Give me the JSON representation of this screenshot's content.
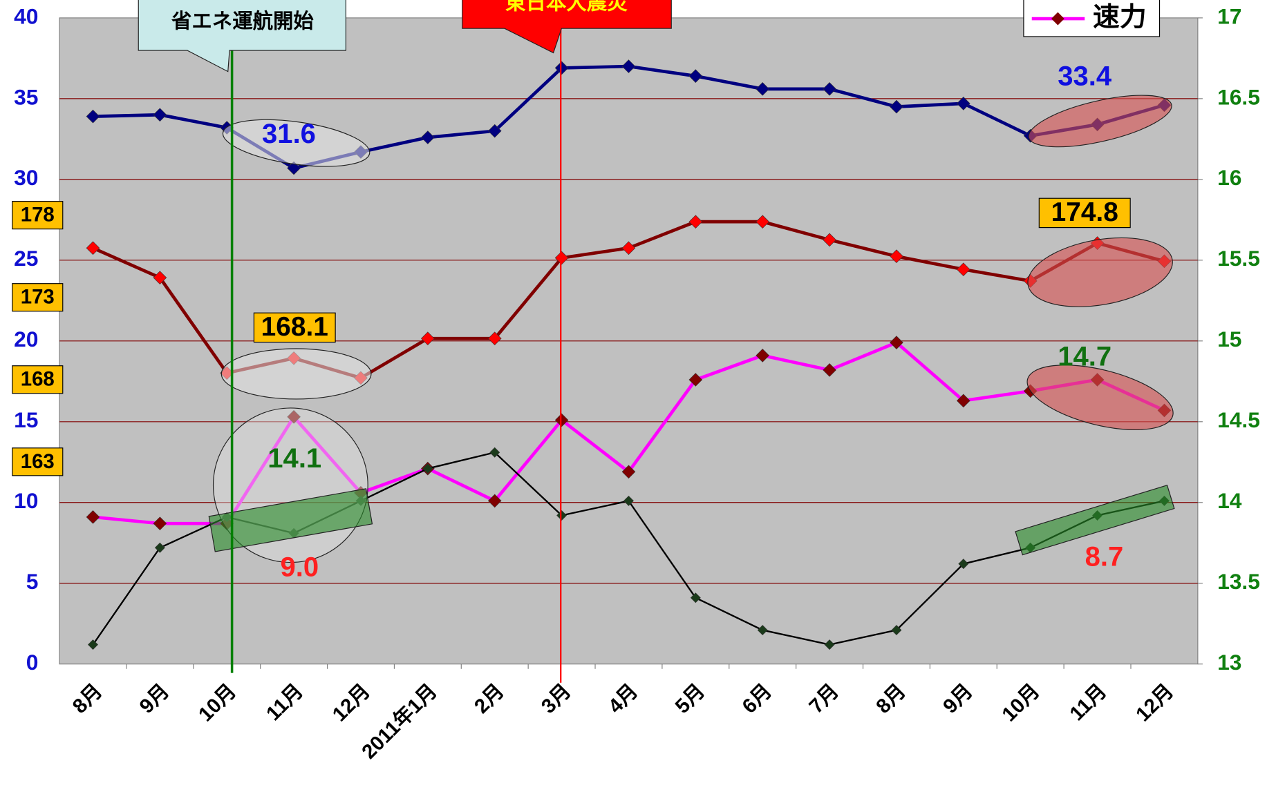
{
  "chart_data": {
    "type": "line",
    "categories": [
      "8月",
      "9月",
      "10月",
      "11月",
      "12月",
      "2011年1月",
      "2月",
      "3月",
      "4月",
      "5月",
      "6月",
      "7月",
      "8月",
      "9月",
      "10月",
      "11月",
      "12月"
    ],
    "ylim": [
      0,
      40
    ],
    "yticks": [
      0,
      5,
      10,
      15,
      20,
      25,
      30,
      35,
      40
    ],
    "y2lim": [
      13,
      17
    ],
    "y2ticks": [
      13,
      13.5,
      14,
      14.5,
      15,
      15.5,
      16,
      16.5,
      17
    ],
    "y3lim": [
      150.7,
      190
    ],
    "y3ticks": [
      163,
      168,
      173,
      178
    ],
    "grid": true,
    "series": [
      {
        "color": "#000080",
        "marker_color": "#000080",
        "axis": "y",
        "values": [
          33.9,
          34.0,
          33.2,
          30.7,
          31.7,
          32.6,
          33.0,
          36.9,
          37.0,
          36.4,
          35.6,
          35.6,
          34.5,
          34.7,
          32.7,
          33.4,
          34.6
        ]
      },
      {
        "color": "#800000",
        "marker_color": "#ff0000",
        "axis": "y3",
        "values": [
          176.0,
          174.2,
          168.4,
          169.3,
          168.1,
          170.5,
          170.5,
          175.4,
          176.0,
          177.6,
          177.6,
          176.5,
          175.5,
          174.7,
          174.0,
          176.3,
          175.2
        ]
      },
      {
        "name": "速力",
        "color": "#ff00ff",
        "marker_color": "#800000",
        "axis": "y2",
        "values": [
          13.91,
          13.87,
          13.87,
          14.53,
          14.06,
          14.21,
          14.01,
          14.51,
          14.19,
          14.76,
          14.91,
          14.82,
          14.99,
          14.63,
          14.69,
          14.76,
          14.57
        ]
      },
      {
        "color": "#000000",
        "marker_color": "#1a3a1a",
        "axis": "y",
        "values": [
          1.2,
          7.2,
          9.1,
          8.1,
          10.1,
          12.1,
          13.1,
          9.2,
          10.1,
          4.1,
          2.1,
          1.2,
          2.1,
          6.2,
          7.2,
          9.2,
          10.1
        ]
      }
    ],
    "legend": "top-right",
    "annotations": [
      "省エネ運航開始",
      "東日本大震災",
      "31.6",
      "168.1",
      "14.1",
      "9.0",
      "33.4",
      "174.8",
      "14.7",
      "8.7"
    ]
  }
}
